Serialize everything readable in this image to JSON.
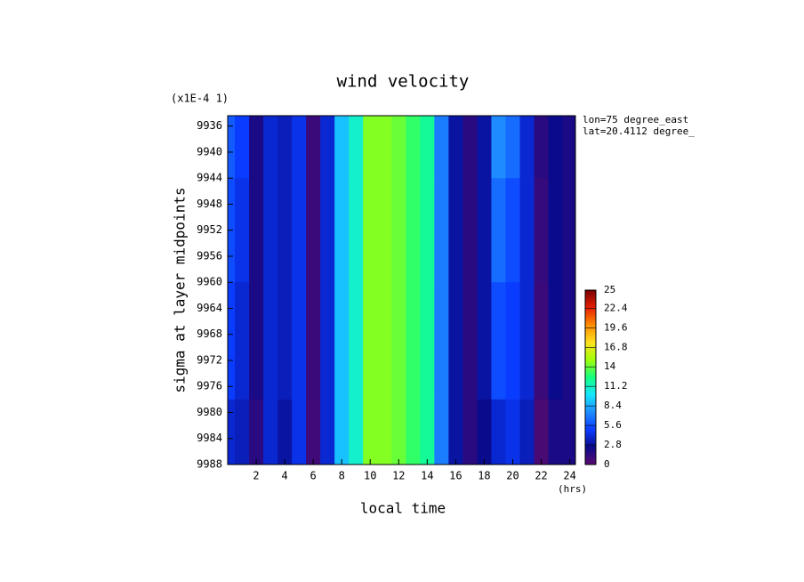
{
  "chart_data": {
    "type": "contour",
    "title": "wind velocity",
    "x_label": "local time",
    "y_label": "sigma at layer midpoints",
    "y_scale_note": "(x1E-4 1)",
    "x_unit": "(hrs)",
    "annotations": [
      "lon=75 degree_east",
      "lat=20.4112 degree_"
    ],
    "x": [
      0,
      1,
      2,
      3,
      4,
      5,
      6,
      7,
      8,
      9,
      10,
      11,
      12,
      13,
      14,
      15,
      16,
      17,
      18,
      19,
      20,
      21,
      22,
      23,
      24
    ],
    "y": [
      9936,
      9952,
      9968,
      9988
    ],
    "z": [
      [
        6,
        5,
        2,
        4,
        3.5,
        4.5,
        1,
        4,
        9,
        11,
        14.5,
        14.5,
        14,
        13,
        12,
        7,
        3,
        1.5,
        3,
        7.5,
        6.5,
        4,
        1.5,
        2.5,
        2
      ],
      [
        5.5,
        4.5,
        2,
        4,
        3.5,
        4.5,
        1,
        4,
        9,
        11,
        14.5,
        14.5,
        14,
        13,
        12,
        7,
        3,
        1.5,
        3,
        6.5,
        5.5,
        4,
        1.2,
        2.5,
        2
      ],
      [
        5,
        4,
        2,
        4,
        3.5,
        4.5,
        1,
        4,
        9,
        11,
        14.5,
        14.5,
        14,
        13,
        12,
        7,
        3,
        1.5,
        3,
        5.5,
        5,
        4,
        1,
        2.5,
        2
      ],
      [
        4,
        3.5,
        1.5,
        4,
        3,
        4.5,
        0.8,
        4,
        9,
        11,
        14.5,
        14.5,
        14,
        13,
        12,
        7,
        3,
        1.5,
        2.5,
        4,
        4.5,
        3.5,
        0.5,
        2,
        2
      ]
    ],
    "xlim": [
      0,
      24.4
    ],
    "xticks": [
      2,
      4,
      6,
      8,
      10,
      12,
      14,
      16,
      18,
      20,
      22,
      24
    ],
    "ylim": [
      9988,
      9934.4
    ],
    "yticks": [
      9936,
      9940,
      9944,
      9948,
      9952,
      9956,
      9960,
      9964,
      9968,
      9972,
      9976,
      9980,
      9984,
      9988
    ],
    "colorbar_lim": [
      0,
      25
    ],
    "colorbar_ticks": [
      0,
      2.8,
      5.6,
      8.4,
      11.2,
      14,
      16.8,
      19.6,
      22.4,
      25
    ],
    "colors": [
      "#5a0a6e",
      "#0a0a8c",
      "#0a3cff",
      "#1e8cff",
      "#14e6ff",
      "#14ff80",
      "#a0ff0a",
      "#ffe01e",
      "#ff8c00",
      "#e61e00",
      "#780000"
    ]
  }
}
